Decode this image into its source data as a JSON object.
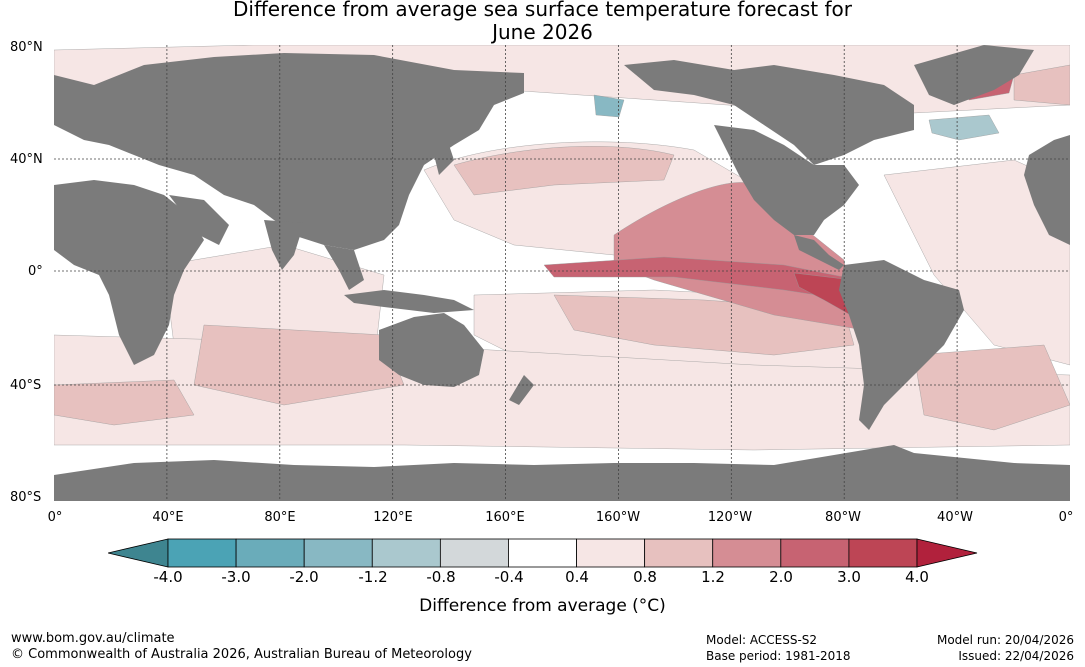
{
  "title": {
    "line1": "Difference from average sea surface temperature forecast for",
    "line2": "June 2026"
  },
  "axes": {
    "lat_labels": [
      "80°N",
      "40°N",
      "0°",
      "40°S",
      "80°S"
    ],
    "lon_labels": [
      "0°",
      "40°E",
      "80°E",
      "120°E",
      "160°E",
      "160°W",
      "120°W",
      "80°W",
      "40°W",
      "0°"
    ]
  },
  "colorbar": {
    "title": "Difference from average (°C)",
    "tick_labels": [
      "-4.0",
      "-3.0",
      "-2.0",
      "-1.2",
      "-0.8",
      "-0.4",
      "0.4",
      "0.8",
      "1.2",
      "2.0",
      "3.0",
      "4.0"
    ],
    "colors": [
      "#4ba3b5",
      "#6aacba",
      "#88b8c3",
      "#aac8ce",
      "#d3d8da",
      "#ffffff",
      "#f6e6e5",
      "#e7c1bf",
      "#d58d94",
      "#c76372",
      "#bd4555"
    ],
    "low_extend_color": "#3e8590",
    "high_extend_color": "#b1213c"
  },
  "map_colors": {
    "land": "#7b7b7b",
    "ocean": "#ffffff",
    "grid": "#444444"
  },
  "footer": {
    "website": "www.bom.gov.au/climate",
    "copyright": "© Commonwealth of Australia 2026, Australian Bureau of Meteorology",
    "model": "Model: ACCESS-S2",
    "base_period": "Base period: 1981-2018",
    "model_run": "Model run: 20/04/2026",
    "issued": "Issued: 22/04/2026"
  }
}
